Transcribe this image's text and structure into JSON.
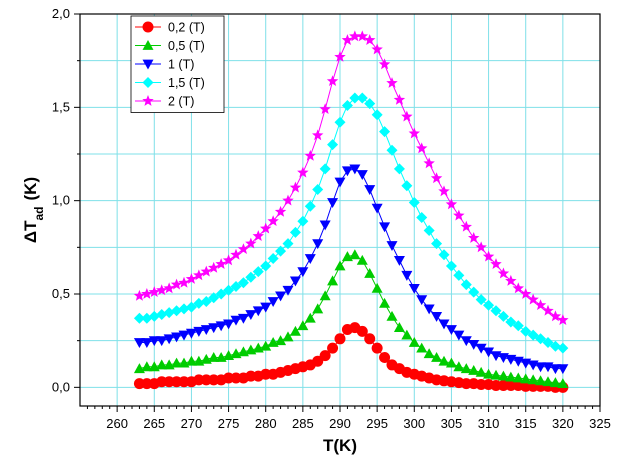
{
  "chart_data": {
    "type": "scatter",
    "xlabel": "T(K)",
    "ylabel": {
      "main": "ΔT",
      "sub": "ad",
      "unit": "(K)"
    },
    "xlim": [
      255,
      325
    ],
    "ylim": [
      -0.1,
      2.0
    ],
    "xticks": [
      260,
      265,
      270,
      275,
      280,
      285,
      290,
      295,
      300,
      305,
      310,
      315,
      320,
      325
    ],
    "yticks": [
      {
        "value": 0.0,
        "label": "0,0"
      },
      {
        "value": 0.5,
        "label": "0,5"
      },
      {
        "value": 1.0,
        "label": "1,0"
      },
      {
        "value": 1.5,
        "label": "1,5"
      },
      {
        "value": 2.0,
        "label": "2,0"
      }
    ],
    "grid": true,
    "grid_color": "#7FE0E8",
    "legend_position": "top-left",
    "series": [
      {
        "name": "0,2 (T)",
        "color": "#FF0000",
        "marker": "circle",
        "x": [
          263,
          264,
          265,
          266,
          267,
          268,
          269,
          270,
          271,
          272,
          273,
          274,
          275,
          276,
          277,
          278,
          279,
          280,
          281,
          282,
          283,
          284,
          285,
          286,
          287,
          288,
          289,
          290,
          291,
          292,
          293,
          294,
          295,
          296,
          297,
          298,
          299,
          300,
          301,
          302,
          303,
          304,
          305,
          306,
          307,
          308,
          309,
          310,
          311,
          312,
          313,
          314,
          315,
          316,
          317,
          318,
          319,
          320
        ],
        "y": [
          0.02,
          0.02,
          0.02,
          0.03,
          0.03,
          0.03,
          0.03,
          0.03,
          0.04,
          0.04,
          0.04,
          0.04,
          0.05,
          0.05,
          0.05,
          0.06,
          0.06,
          0.07,
          0.07,
          0.08,
          0.09,
          0.1,
          0.11,
          0.12,
          0.14,
          0.17,
          0.21,
          0.26,
          0.31,
          0.32,
          0.3,
          0.26,
          0.21,
          0.16,
          0.12,
          0.1,
          0.08,
          0.07,
          0.06,
          0.05,
          0.04,
          0.035,
          0.03,
          0.025,
          0.02,
          0.02,
          0.015,
          0.015,
          0.01,
          0.01,
          0.01,
          0.01,
          0.005,
          0.005,
          0.005,
          0.005,
          0.0,
          0.0
        ]
      },
      {
        "name": "0,5 (T)",
        "color": "#00CC00",
        "marker": "triangle-up",
        "x": [
          263,
          264,
          265,
          266,
          267,
          268,
          269,
          270,
          271,
          272,
          273,
          274,
          275,
          276,
          277,
          278,
          279,
          280,
          281,
          282,
          283,
          284,
          285,
          286,
          287,
          288,
          289,
          290,
          291,
          292,
          293,
          294,
          295,
          296,
          297,
          298,
          299,
          300,
          301,
          302,
          303,
          304,
          305,
          306,
          307,
          308,
          309,
          310,
          311,
          312,
          313,
          314,
          315,
          316,
          317,
          318,
          319,
          320
        ],
        "y": [
          0.1,
          0.11,
          0.11,
          0.12,
          0.12,
          0.13,
          0.13,
          0.14,
          0.14,
          0.15,
          0.16,
          0.16,
          0.17,
          0.18,
          0.19,
          0.2,
          0.21,
          0.22,
          0.24,
          0.25,
          0.27,
          0.3,
          0.33,
          0.37,
          0.42,
          0.49,
          0.57,
          0.65,
          0.7,
          0.71,
          0.68,
          0.61,
          0.53,
          0.45,
          0.38,
          0.32,
          0.28,
          0.24,
          0.21,
          0.18,
          0.16,
          0.14,
          0.13,
          0.11,
          0.1,
          0.09,
          0.08,
          0.07,
          0.065,
          0.06,
          0.055,
          0.05,
          0.045,
          0.04,
          0.035,
          0.03,
          0.025,
          0.02
        ]
      },
      {
        "name": "1 (T)",
        "color": "#0000FF",
        "marker": "triangle-down",
        "x": [
          263,
          264,
          265,
          266,
          267,
          268,
          269,
          270,
          271,
          272,
          273,
          274,
          275,
          276,
          277,
          278,
          279,
          280,
          281,
          282,
          283,
          284,
          285,
          286,
          287,
          288,
          289,
          290,
          291,
          292,
          293,
          294,
          295,
          296,
          297,
          298,
          299,
          300,
          301,
          302,
          303,
          304,
          305,
          306,
          307,
          308,
          309,
          310,
          311,
          312,
          313,
          314,
          315,
          316,
          317,
          318,
          319,
          320
        ],
        "y": [
          0.24,
          0.24,
          0.25,
          0.25,
          0.26,
          0.27,
          0.28,
          0.29,
          0.3,
          0.31,
          0.32,
          0.33,
          0.34,
          0.36,
          0.37,
          0.39,
          0.41,
          0.43,
          0.46,
          0.49,
          0.52,
          0.57,
          0.62,
          0.69,
          0.77,
          0.87,
          0.99,
          1.1,
          1.16,
          1.17,
          1.14,
          1.06,
          0.96,
          0.86,
          0.76,
          0.68,
          0.6,
          0.53,
          0.47,
          0.42,
          0.38,
          0.34,
          0.31,
          0.28,
          0.25,
          0.23,
          0.21,
          0.19,
          0.17,
          0.16,
          0.15,
          0.14,
          0.13,
          0.12,
          0.11,
          0.11,
          0.1,
          0.1
        ]
      },
      {
        "name": "1,5 (T)",
        "color": "#00FFFF",
        "marker": "diamond",
        "x": [
          263,
          264,
          265,
          266,
          267,
          268,
          269,
          270,
          271,
          272,
          273,
          274,
          275,
          276,
          277,
          278,
          279,
          280,
          281,
          282,
          283,
          284,
          285,
          286,
          287,
          288,
          289,
          290,
          291,
          292,
          293,
          294,
          295,
          296,
          297,
          298,
          299,
          300,
          301,
          302,
          303,
          304,
          305,
          306,
          307,
          308,
          309,
          310,
          311,
          312,
          313,
          314,
          315,
          316,
          317,
          318,
          319,
          320
        ],
        "y": [
          0.37,
          0.37,
          0.38,
          0.39,
          0.4,
          0.41,
          0.42,
          0.43,
          0.45,
          0.46,
          0.48,
          0.5,
          0.52,
          0.54,
          0.56,
          0.59,
          0.62,
          0.65,
          0.69,
          0.73,
          0.77,
          0.83,
          0.89,
          0.97,
          1.06,
          1.17,
          1.3,
          1.42,
          1.51,
          1.55,
          1.55,
          1.52,
          1.46,
          1.37,
          1.27,
          1.17,
          1.08,
          0.99,
          0.91,
          0.84,
          0.77,
          0.71,
          0.65,
          0.6,
          0.55,
          0.51,
          0.47,
          0.44,
          0.41,
          0.38,
          0.35,
          0.33,
          0.3,
          0.28,
          0.26,
          0.24,
          0.22,
          0.21
        ]
      },
      {
        "name": "2 (T)",
        "color": "#FF00FF",
        "marker": "star",
        "x": [
          263,
          264,
          265,
          266,
          267,
          268,
          269,
          270,
          271,
          272,
          273,
          274,
          275,
          276,
          277,
          278,
          279,
          280,
          281,
          282,
          283,
          284,
          285,
          286,
          287,
          288,
          289,
          290,
          291,
          292,
          293,
          294,
          295,
          296,
          297,
          298,
          299,
          300,
          301,
          302,
          303,
          304,
          305,
          306,
          307,
          308,
          309,
          310,
          311,
          312,
          313,
          314,
          315,
          316,
          317,
          318,
          319,
          320
        ],
        "y": [
          0.49,
          0.5,
          0.51,
          0.52,
          0.53,
          0.55,
          0.56,
          0.58,
          0.6,
          0.62,
          0.64,
          0.66,
          0.68,
          0.71,
          0.74,
          0.77,
          0.81,
          0.85,
          0.89,
          0.94,
          1.0,
          1.07,
          1.15,
          1.24,
          1.35,
          1.49,
          1.64,
          1.77,
          1.86,
          1.88,
          1.88,
          1.86,
          1.81,
          1.73,
          1.63,
          1.54,
          1.45,
          1.36,
          1.28,
          1.2,
          1.12,
          1.05,
          0.98,
          0.92,
          0.86,
          0.8,
          0.75,
          0.7,
          0.66,
          0.61,
          0.57,
          0.53,
          0.5,
          0.47,
          0.44,
          0.41,
          0.38,
          0.36
        ]
      }
    ]
  }
}
